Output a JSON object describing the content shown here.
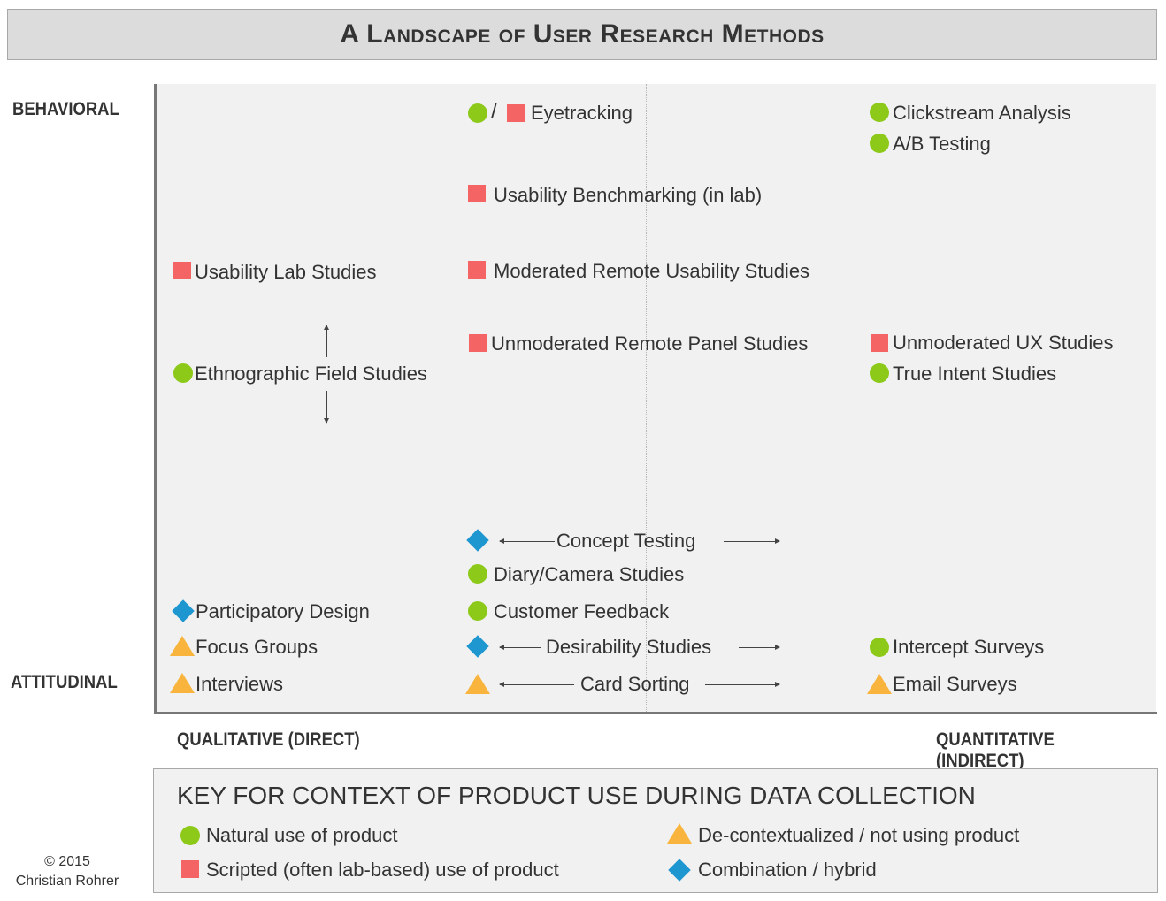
{
  "title": "A Landscape of User Research Methods",
  "axes": {
    "y_top": "BEHAVIORAL",
    "y_bottom": "ATTITUDINAL",
    "x_left": "QUALITATIVE (DIRECT)",
    "x_right": "QUANTITATIVE (INDIRECT)"
  },
  "methods": {
    "eyetracking": "Eyetracking",
    "clickstream": "Clickstream Analysis",
    "ab_testing": "A/B Testing",
    "usability_benchmarking": "Usability Benchmarking (in lab)",
    "usability_lab": "Usability Lab Studies",
    "moderated_remote": "Moderated Remote Usability Studies",
    "unmoderated_panel": "Unmoderated Remote Panel Studies",
    "unmoderated_ux": "Unmoderated UX Studies",
    "ethnographic": "Ethnographic Field Studies",
    "true_intent": "True Intent Studies",
    "concept_testing": "Concept Testing",
    "diary_camera": "Diary/Camera Studies",
    "participatory_design": "Participatory Design",
    "customer_feedback": "Customer Feedback",
    "focus_groups": "Focus Groups",
    "desirability": "Desirability Studies",
    "intercept_surveys": "Intercept Surveys",
    "interviews": "Interviews",
    "card_sorting": "Card Sorting",
    "email_surveys": "Email Surveys"
  },
  "eyetracking_separator": "/",
  "key": {
    "title": "KEY FOR CONTEXT OF PRODUCT USE DURING DATA COLLECTION",
    "natural": "Natural use of product",
    "scripted": "Scripted (often lab-based) use of product",
    "decontextualized": "De-contextualized / not using product",
    "hybrid": "Combination / hybrid"
  },
  "copyright": {
    "year": "© 2015",
    "author": "Christian Rohrer"
  },
  "colors": {
    "natural": "#8cc919",
    "scripted": "#f56464",
    "decontextualized": "#f8b43c",
    "hybrid": "#1e96d0",
    "background": "#f1f1f1",
    "title_bar": "#dcdcdc"
  }
}
